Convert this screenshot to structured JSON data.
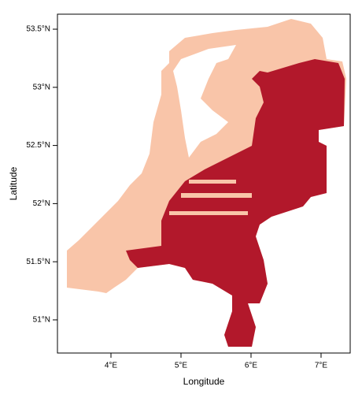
{
  "chart_data": {
    "type": "raster-map",
    "xlabel": "Longitude",
    "ylabel": "Latitude",
    "xlim": [
      3.236,
      7.416
    ],
    "ylim": [
      50.715,
      53.629
    ],
    "xticks": [
      {
        "value": 4,
        "label": "4°E"
      },
      {
        "value": 5,
        "label": "5°E"
      },
      {
        "value": 6,
        "label": "6°E"
      },
      {
        "value": 7,
        "label": "7°E"
      }
    ],
    "yticks": [
      {
        "value": 51,
        "label": "51°N"
      },
      {
        "value": 51.5,
        "label": "51.5°N"
      },
      {
        "value": 52,
        "label": "52°N"
      },
      {
        "value": 52.5,
        "label": "52.5°N"
      },
      {
        "value": 53,
        "label": "53°N"
      },
      {
        "value": 53.5,
        "label": "53.5°N"
      }
    ],
    "colors": [
      "#f9c5a9",
      "#b2182b"
    ]
  }
}
